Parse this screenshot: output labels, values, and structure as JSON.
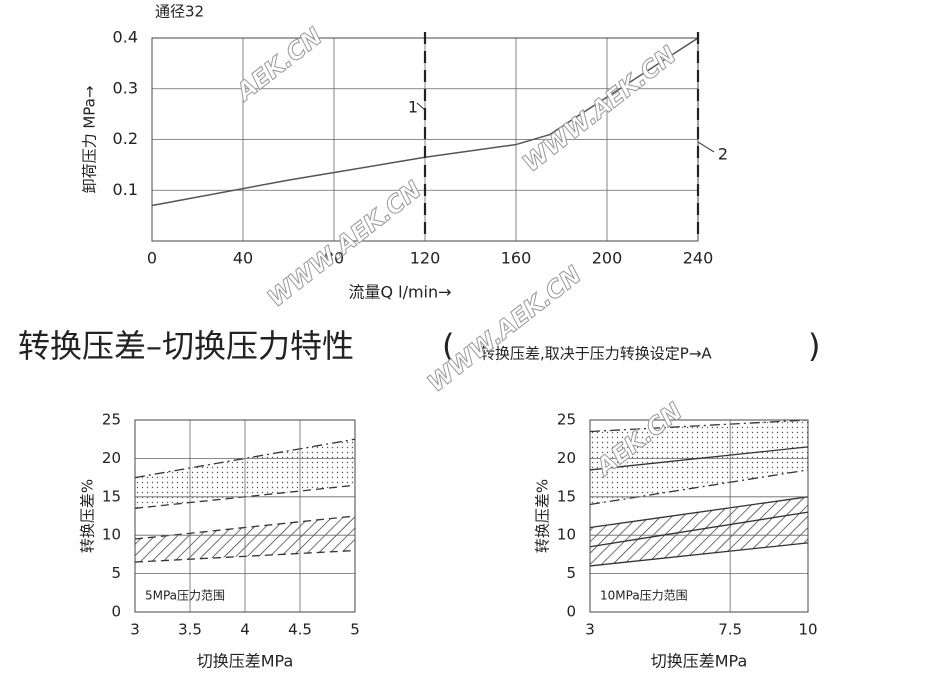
{
  "chart_data": [
    {
      "type": "line",
      "title": "通径32",
      "xlabel": "流量Q l/min→",
      "ylabel": "卸荷压力 MPa→",
      "x": [
        0,
        60,
        120,
        160,
        175,
        185,
        240
      ],
      "values": [
        0.07,
        0.12,
        0.165,
        0.19,
        0.21,
        0.24,
        0.4
      ],
      "color": "#555555",
      "xlim": [
        0,
        240
      ],
      "ylim": [
        0,
        0.4
      ],
      "xticks": [
        0,
        40,
        80,
        120,
        160,
        200,
        240
      ],
      "yticks": [
        0.1,
        0.2,
        0.3,
        0.4
      ],
      "grid": true,
      "reference_lines": [
        {
          "x": 120,
          "label": "1"
        },
        {
          "x": 240,
          "label": "2"
        }
      ]
    },
    {
      "type": "band",
      "annotation": "5MPa压力范围",
      "xlabel": "切换压差MPa",
      "ylabel": "转换压差%",
      "color": "#333333",
      "xlim": [
        3,
        5
      ],
      "ylim": [
        0,
        25
      ],
      "xticks": [
        3,
        3.5,
        4,
        4.5,
        5
      ],
      "yticks": [
        0,
        5,
        10,
        15,
        20,
        25
      ],
      "grid": true,
      "bands": [
        {
          "fill": "dots",
          "x": [
            3,
            5
          ],
          "lower": [
            13.5,
            16.5
          ],
          "upper": [
            17.5,
            22.5
          ],
          "lower_style": "dashed",
          "upper_style": "dash-dot"
        },
        {
          "fill": "hatch",
          "x": [
            3,
            5
          ],
          "lower": [
            6.5,
            8
          ],
          "upper": [
            9.5,
            12.5
          ],
          "lower_style": "dashed",
          "upper_style": "dashed"
        }
      ],
      "lines": []
    },
    {
      "type": "band",
      "annotation": "10MPa压力范围",
      "xlabel": "切换压差MPa",
      "ylabel": "转换压差%",
      "color": "#333333",
      "xlim": [
        3,
        10
      ],
      "ylim": [
        0,
        25
      ],
      "xticks": [
        3,
        7.5,
        10
      ],
      "yticks": [
        0,
        5,
        10,
        15,
        20,
        25
      ],
      "grid": true,
      "bands": [
        {
          "fill": "dots",
          "x": [
            3,
            10
          ],
          "lower": [
            14,
            18.5
          ],
          "upper": [
            23.5,
            25
          ],
          "lower_style": "dash-dot",
          "upper_style": "dash-dot"
        },
        {
          "fill": "hatch",
          "x": [
            3,
            10
          ],
          "lower": [
            6,
            9
          ],
          "upper": [
            11,
            15
          ],
          "lower_style": "solid",
          "upper_style": "solid"
        }
      ],
      "lines": [
        {
          "x": [
            3,
            10
          ],
          "values": [
            18.5,
            21.5
          ],
          "style": "solid"
        },
        {
          "x": [
            3,
            10
          ],
          "values": [
            8.5,
            13
          ],
          "style": "solid"
        }
      ]
    }
  ],
  "heading": {
    "title": "转换压差–切换压力特性",
    "open": "(",
    "note": "转换压差,取决于压力转换设定P→A",
    "close": ")"
  },
  "watermarks": [
    "AEK.CN",
    "WWW.AEK.CN",
    "WWW.AEK.CN",
    "WWW.AEK.CN",
    "AEK.CN"
  ]
}
